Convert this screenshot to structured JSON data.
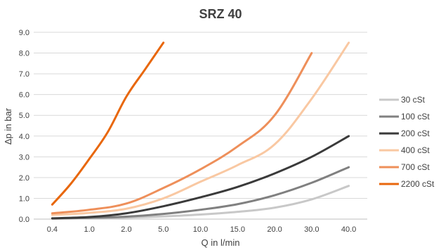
{
  "chart_data": {
    "type": "line",
    "title": "SRZ 40",
    "xlabel": "Q in l/min",
    "ylabel": "Δp in bar",
    "categories": [
      "0.4",
      "1.0",
      "2.0",
      "5.0",
      "10.0",
      "15.0",
      "20.0",
      "30.0",
      "40.0"
    ],
    "ylim": [
      0,
      9
    ],
    "yticks": [
      "0.0",
      "1.0",
      "2.0",
      "3.0",
      "4.0",
      "5.0",
      "6.0",
      "7.0",
      "8.0",
      "9.0"
    ],
    "grid": true,
    "legend_position": "right",
    "series": [
      {
        "name": "30 cSt",
        "color": "#c8c8c8",
        "x": [
          0,
          1,
          2,
          3,
          4,
          5,
          6,
          7,
          8
        ],
        "values": [
          0.02,
          0.04,
          0.07,
          0.13,
          0.22,
          0.35,
          0.55,
          0.95,
          1.6
        ]
      },
      {
        "name": "100 cSt",
        "color": "#808080",
        "x": [
          0,
          1,
          2,
          3,
          4,
          5,
          6,
          7,
          8
        ],
        "values": [
          0.03,
          0.06,
          0.12,
          0.25,
          0.45,
          0.72,
          1.15,
          1.75,
          2.5
        ]
      },
      {
        "name": "200 cSt",
        "color": "#3a3a3a",
        "x": [
          0,
          1,
          2,
          3,
          4,
          5,
          6,
          7,
          8
        ],
        "values": [
          0.04,
          0.1,
          0.28,
          0.62,
          1.05,
          1.55,
          2.2,
          3.0,
          4.0
        ]
      },
      {
        "name": "400 cSt",
        "color": "#f9c8a2",
        "x": [
          0,
          1,
          2,
          3,
          4,
          5,
          6,
          7,
          8
        ],
        "values": [
          0.2,
          0.3,
          0.5,
          1.0,
          1.8,
          2.6,
          3.6,
          5.8,
          8.5
        ]
      },
      {
        "name": "700 cSt",
        "color": "#ee8f5a",
        "x": [
          0,
          1,
          2,
          3,
          4,
          5,
          6,
          7
        ],
        "values": [
          0.28,
          0.45,
          0.75,
          1.5,
          2.4,
          3.5,
          5.0,
          8.0
        ]
      },
      {
        "name": "2200 cSt",
        "color": "#e8670c",
        "x": [
          0,
          0.5,
          1,
          1.5,
          2,
          2.5,
          3
        ],
        "values": [
          0.7,
          1.7,
          2.9,
          4.2,
          5.9,
          7.2,
          8.5
        ]
      }
    ]
  }
}
